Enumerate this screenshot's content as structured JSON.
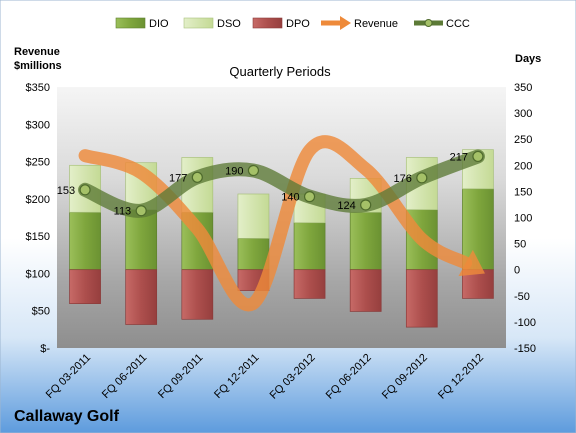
{
  "chart_data": {
    "type": "bar",
    "title": "Quarterly Periods",
    "company": "Callaway Golf",
    "left_axis_label": [
      "Revenue",
      "$millions"
    ],
    "right_axis_label": "Days",
    "left_axis": {
      "min": 0,
      "max": 350,
      "step": 50,
      "tick_labels": [
        "$-",
        "$50",
        "$100",
        "$150",
        "$200",
        "$250",
        "$300",
        "$350"
      ]
    },
    "right_axis": {
      "min": -150,
      "max": 350,
      "step": 50,
      "tick_labels": [
        "-150",
        "-100",
        "-50",
        "0",
        "50",
        "100",
        "150",
        "200",
        "250",
        "300",
        "350"
      ]
    },
    "categories": [
      "FQ 03-2011",
      "FQ 06-2011",
      "FQ 09-2011",
      "FQ 12-2011",
      "FQ 03-2012",
      "FQ 06-2012",
      "FQ 09-2012",
      "FQ 12-2012"
    ],
    "legend": [
      "DIO",
      "DSO",
      "DPO",
      "Revenue",
      "CCC"
    ],
    "series": [
      {
        "name": "DIO",
        "axis": "right",
        "color": "#8DB04A",
        "values": [
          110,
          115,
          110,
          60,
          90,
          110,
          115,
          155
        ]
      },
      {
        "name": "DSO",
        "axis": "right",
        "color": "#D7E7B4",
        "values": [
          90,
          90,
          105,
          85,
          55,
          65,
          100,
          75
        ]
      },
      {
        "name": "DPO",
        "axis": "right",
        "color": "#B85A59",
        "values": [
          -65,
          -105,
          -95,
          -40,
          -55,
          -80,
          -110,
          -55
        ]
      },
      {
        "name": "Revenue",
        "axis": "left",
        "color": "#EE8A3A",
        "values": [
          258,
          235,
          160,
          60,
          265,
          240,
          146,
          105
        ]
      },
      {
        "name": "CCC",
        "axis": "right",
        "color": "#5C7A36",
        "values": [
          153,
          113,
          177,
          190,
          140,
          124,
          176,
          217
        ],
        "labels": [
          "153",
          "113",
          "177",
          "190",
          "140",
          "124",
          "176",
          "217"
        ]
      }
    ],
    "grid": false,
    "legend_position": "top"
  }
}
